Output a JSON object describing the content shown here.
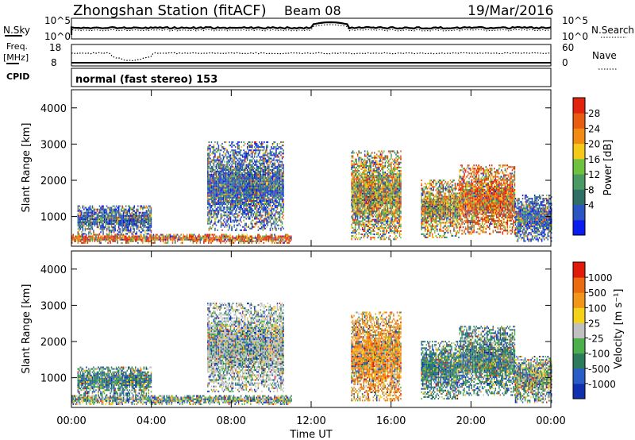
{
  "header": {
    "station": "Zhongshan Station (fitACF)",
    "beam": "Beam 08",
    "date": "19/Mar/2016"
  },
  "top_panels": {
    "nsky_label": "N.Sky",
    "nsky_ticks": [
      "10^5",
      "10^0"
    ],
    "nsearch_label": "N.Search",
    "nsearch_ticks": [
      "10^5",
      "10^0"
    ],
    "freq_label_1": "Freq.",
    "freq_label_2": "[MHz]",
    "freq_ticks": [
      "18",
      "8"
    ],
    "nave_label": "Nave",
    "nave_ticks": [
      "60",
      "0"
    ],
    "cpid_label": "CPID",
    "cpid_text": "normal (fast stereo) 153"
  },
  "chart_data": [
    {
      "type": "heatmap",
      "quantity": "Power",
      "ylabel": "Slant Range [km]",
      "ylim": [
        180,
        4500
      ],
      "yticks": [
        1000,
        2000,
        3000,
        4000
      ],
      "xlabel": "Time UT",
      "xlim_hours": [
        0,
        24
      ],
      "xticks": [
        "00:00",
        "04:00",
        "08:00",
        "12:00",
        "16:00",
        "20:00",
        "00:00"
      ],
      "colorbar": {
        "label": "Power [dB]",
        "ticks": [
          "28",
          "24",
          "20",
          "16",
          "12",
          "8",
          "4"
        ],
        "colors": [
          "#0a1cf0",
          "#2c55c4",
          "#2f6f66",
          "#4a9a63",
          "#6ec23d",
          "#f5c918",
          "#f28b12",
          "#e85b10",
          "#e2230d"
        ]
      },
      "echo_regions": [
        {
          "t_start": 0.0,
          "t_end": 11.0,
          "r_min": 250,
          "r_max": 500,
          "level": "high"
        },
        {
          "t_start": 0.3,
          "t_end": 4.0,
          "r_min": 500,
          "r_max": 1300,
          "level": "low"
        },
        {
          "t_start": 6.8,
          "t_end": 10.6,
          "r_min": 600,
          "r_max": 3050,
          "level": "low"
        },
        {
          "t_start": 14.0,
          "t_end": 16.5,
          "r_min": 350,
          "r_max": 2800,
          "level": "mid"
        },
        {
          "t_start": 17.5,
          "t_end": 19.4,
          "r_min": 400,
          "r_max": 2000,
          "level": "mid"
        },
        {
          "t_start": 19.4,
          "t_end": 22.2,
          "r_min": 500,
          "r_max": 2400,
          "level": "high"
        },
        {
          "t_start": 22.2,
          "t_end": 24.0,
          "r_min": 300,
          "r_max": 1600,
          "level": "low"
        }
      ]
    },
    {
      "type": "heatmap",
      "quantity": "Velocity",
      "ylabel": "Slant Range [km]",
      "ylim": [
        180,
        4500
      ],
      "yticks": [
        1000,
        2000,
        3000,
        4000
      ],
      "xlabel": "Time UT",
      "xlim_hours": [
        0,
        24
      ],
      "xticks": [
        "00:00",
        "04:00",
        "08:00",
        "12:00",
        "16:00",
        "20:00",
        "00:00"
      ],
      "colorbar": {
        "label": "Velocity [m s⁻¹]",
        "ticks": [
          "1000",
          "500",
          "100",
          "25",
          "-25",
          "-100",
          "-500",
          "-1000"
        ],
        "colors": [
          "#1030b0",
          "#2a5cc8",
          "#2d7a5c",
          "#4caf4a",
          "#c0c0c0",
          "#f5d21a",
          "#f2961a",
          "#ec6a10",
          "#e21a0a"
        ]
      },
      "echo_regions": [
        {
          "t_start": 0.0,
          "t_end": 11.0,
          "r_min": 250,
          "r_max": 500,
          "level": "mixed"
        },
        {
          "t_start": 0.3,
          "t_end": 4.0,
          "r_min": 500,
          "r_max": 1300,
          "level": "toward"
        },
        {
          "t_start": 6.8,
          "t_end": 10.6,
          "r_min": 600,
          "r_max": 3050,
          "level": "near-zero"
        },
        {
          "t_start": 14.0,
          "t_end": 16.5,
          "r_min": 350,
          "r_max": 2800,
          "level": "away"
        },
        {
          "t_start": 17.5,
          "t_end": 19.4,
          "r_min": 400,
          "r_max": 2000,
          "level": "toward"
        },
        {
          "t_start": 19.4,
          "t_end": 22.2,
          "r_min": 500,
          "r_max": 2400,
          "level": "toward"
        },
        {
          "t_start": 22.2,
          "t_end": 24.0,
          "r_min": 300,
          "r_max": 1600,
          "level": "mixed"
        }
      ]
    }
  ]
}
